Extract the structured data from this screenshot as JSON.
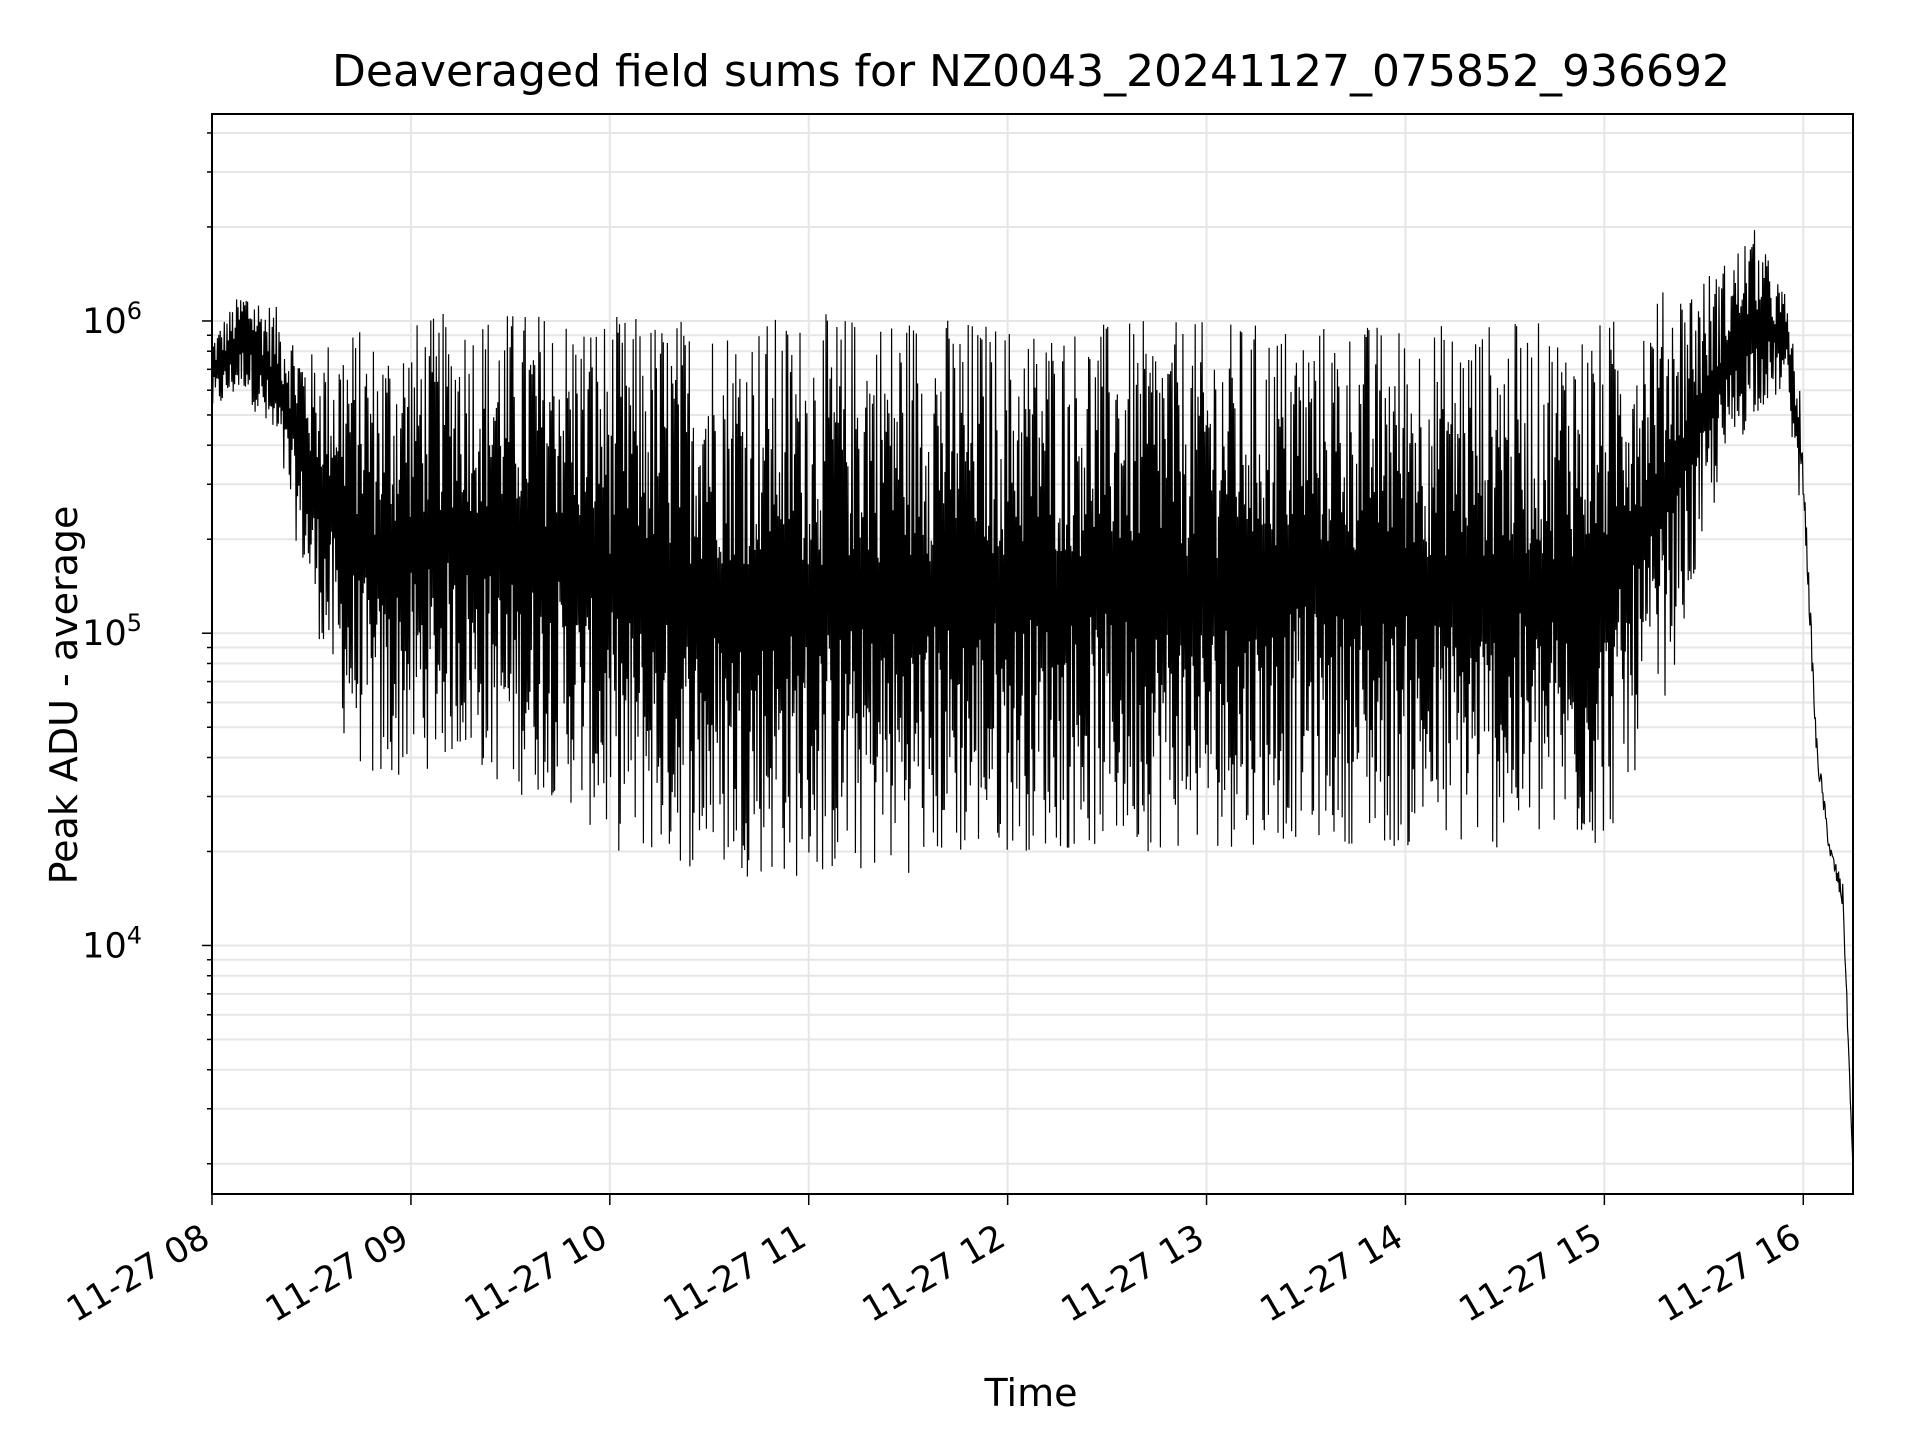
{
  "chart_data": {
    "type": "line",
    "title": "Deaveraged field sums for NZ0043_20241127_075852_936692",
    "xlabel": "Time",
    "ylabel": "Peak ADU - average",
    "yscale": "log",
    "grid": true,
    "xlim": [
      "2024-11-27 08:00",
      "2024-11-27 16:15"
    ],
    "ylim": [
      1600,
      4600000
    ],
    "x_ticks": [
      "11-27 08",
      "11-27 09",
      "11-27 10",
      "11-27 11",
      "11-27 12",
      "11-27 13",
      "11-27 14",
      "11-27 15",
      "11-27 16"
    ],
    "y_ticks": [
      {
        "base": "10",
        "exp": "4"
      },
      {
        "base": "10",
        "exp": "5"
      },
      {
        "base": "10",
        "exp": "6"
      }
    ],
    "line_color": "#000000",
    "grid_color": "#e6e6e6",
    "series": [
      {
        "description": "Values oscillate rapidly between a lower envelope and an upper envelope",
        "x": [
          "2024-11-27 08:00",
          "2024-11-27 08:10",
          "2024-11-27 08:20",
          "2024-11-27 08:30",
          "2024-11-27 08:40",
          "2024-11-27 08:50",
          "2024-11-27 09:00",
          "2024-11-27 09:15",
          "2024-11-27 09:30",
          "2024-11-27 09:45",
          "2024-11-27 10:00",
          "2024-11-27 10:30",
          "2024-11-27 11:00",
          "2024-11-27 11:30",
          "2024-11-27 12:00",
          "2024-11-27 12:30",
          "2024-11-27 13:00",
          "2024-11-27 13:30",
          "2024-11-27 14:00",
          "2024-11-27 14:30",
          "2024-11-27 15:00",
          "2024-11-27 15:20",
          "2024-11-27 15:35",
          "2024-11-27 15:45",
          "2024-11-27 15:55",
          "2024-11-27 16:00",
          "2024-11-27 16:04",
          "2024-11-27 16:08",
          "2024-11-27 16:12",
          "2024-11-27 16:15"
        ],
        "upper": [
          900000,
          1300000,
          1100000,
          800000,
          1000000,
          900000,
          1000000,
          1100000,
          1100000,
          1100000,
          1050000,
          1050000,
          1050000,
          1100000,
          1000000,
          1000000,
          1000000,
          1000000,
          1000000,
          1000000,
          1000000,
          1300000,
          1500000,
          2000000,
          1200000,
          500000,
          60000,
          24000,
          20000,
          2000
        ],
        "lower": [
          500000,
          600000,
          350000,
          120000,
          45000,
          30000,
          35000,
          40000,
          30000,
          30000,
          20000,
          17000,
          16000,
          17000,
          20000,
          20000,
          20000,
          22000,
          20000,
          20000,
          20000,
          70000,
          300000,
          500000,
          600000,
          200000,
          30000,
          17000,
          10000,
          1800
        ]
      }
    ]
  }
}
